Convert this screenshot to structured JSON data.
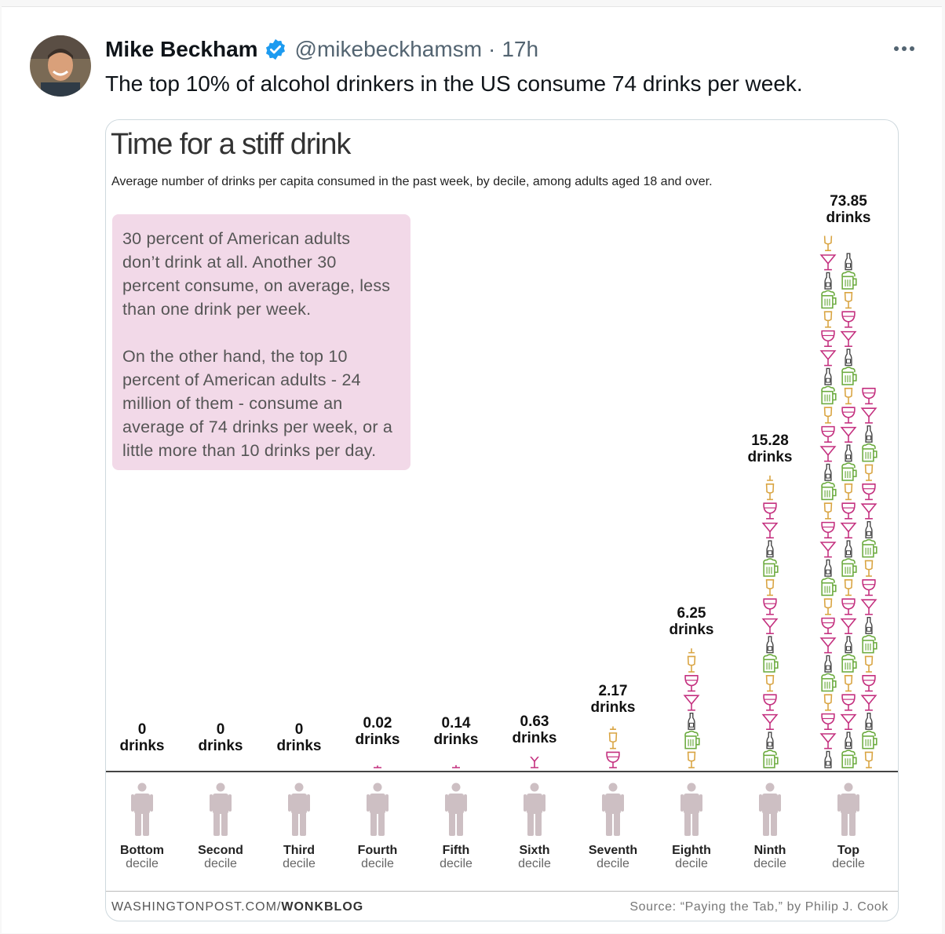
{
  "tweet": {
    "name": "Mike Beckham",
    "handle": "@mikebeckhamsm",
    "separator": "·",
    "time": "17h",
    "text": "The top 10% of alcohol drinkers in the US consume 74 drinks per week."
  },
  "card": {
    "note_paragraph_1": "30 percent of American adults\ndon’t drink at all. Another 30\npercent consume, on average, less\nthan one drink per week.",
    "note_paragraph_2": "On the other hand, the top 10\npercent of American adults - 24\nmillion of them - consume an\naverage of 74 drinks per week, or a\nlittle more than 10 drinks per day.",
    "footer_left_prefix": "WASHINGTONPOST.COM/",
    "footer_left_bold": "WONKBLOG",
    "footer_right": "Source: “Paying the Tab,” by Philip J. Cook"
  },
  "chart_data": {
    "type": "bar",
    "title": "Time for a stiff drink",
    "subtitle": "Average number of drinks per capita consumed in the past week, by decile, among adults aged 18 and over.",
    "categories": [
      {
        "bold": "Bottom",
        "light": "decile"
      },
      {
        "bold": "Second",
        "light": "decile"
      },
      {
        "bold": "Third",
        "light": "decile"
      },
      {
        "bold": "Fourth",
        "light": "decile"
      },
      {
        "bold": "Fifth",
        "light": "decile"
      },
      {
        "bold": "Sixth",
        "light": "decile"
      },
      {
        "bold": "Seventh",
        "light": "decile"
      },
      {
        "bold": "Eighth",
        "light": "decile"
      },
      {
        "bold": "Ninth",
        "light": "decile"
      },
      {
        "bold": "Top",
        "light": "decile"
      }
    ],
    "values": [
      0,
      0,
      0,
      0.02,
      0.14,
      0.63,
      2.17,
      6.25,
      15.28,
      73.85
    ],
    "value_labels": [
      "0\ndrinks",
      "0\ndrinks",
      "0\ndrinks",
      "0.02\ndrinks",
      "0.14\ndrinks",
      "0.63\ndrinks",
      "2.17\ndrinks",
      "6.25\ndrinks",
      "15.28\ndrinks",
      "73.85\ndrinks"
    ],
    "unit": "drinks",
    "icon_types": [
      "martini-glass",
      "wine-glass",
      "beer-mug",
      "beer-bottle",
      "champagne-glass"
    ],
    "colors": {
      "martini-glass": "#c4307f",
      "wine-glass": "#c4307f",
      "beer-mug": "#6cab3f",
      "beer-bottle": "#444444",
      "champagne-glass": "#d9a441",
      "person": "#cdbfc3",
      "note_bg": "#f2d9e8"
    }
  }
}
